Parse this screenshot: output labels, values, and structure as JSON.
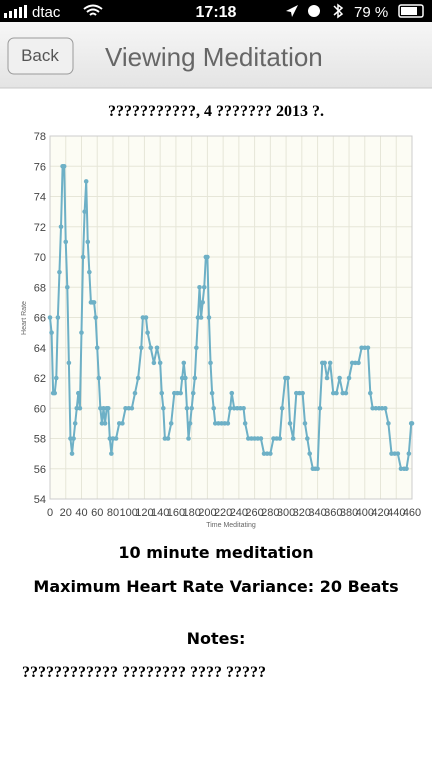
{
  "status_bar": {
    "carrier": "dtac",
    "time": "17:18",
    "battery": "79 %"
  },
  "nav": {
    "back": "Back",
    "title": "Viewing Meditation"
  },
  "chart_data": {
    "type": "line",
    "title": "???????????, 4 ??????? 2013 ?.",
    "x_label": "Time Meditating",
    "y_label": "Heart Rate",
    "color": "#6db0c6",
    "grid": true,
    "x": [
      0,
      2,
      4,
      6,
      8,
      10,
      12,
      14,
      16,
      18,
      20,
      22,
      24,
      26,
      28,
      30,
      32,
      34,
      36,
      38,
      40,
      42,
      44,
      46,
      48,
      50,
      52,
      54,
      56,
      58,
      60,
      62,
      64,
      66,
      68,
      70,
      72,
      74,
      76,
      78,
      80,
      84,
      88,
      92,
      96,
      100,
      104,
      108,
      112,
      116,
      118,
      122,
      124,
      128,
      132,
      136,
      140,
      142,
      144,
      146,
      150,
      154,
      158,
      162,
      166,
      168,
      170,
      172,
      174,
      176,
      178,
      180,
      182,
      184,
      186,
      188,
      190,
      192,
      194,
      196,
      198,
      200,
      202,
      204,
      206,
      208,
      210,
      214,
      218,
      222,
      226,
      229,
      231,
      234,
      238,
      242,
      246,
      248,
      252,
      256,
      260,
      264,
      268,
      272,
      276,
      280,
      284,
      288,
      292,
      295,
      299,
      302,
      305,
      309,
      313,
      317,
      321,
      324,
      327,
      330,
      334,
      337,
      340,
      343,
      346,
      349,
      352,
      356,
      360,
      364,
      368,
      372,
      376,
      380,
      384,
      388,
      392,
      396,
      400,
      404,
      407,
      410,
      414,
      418,
      422,
      426,
      430,
      434,
      438,
      442,
      446,
      450,
      453,
      456,
      459,
      460
    ],
    "values": [
      66,
      65,
      61,
      61,
      62,
      66,
      69,
      72,
      76,
      76,
      71,
      68,
      63,
      58,
      57,
      58,
      59,
      60,
      61,
      60,
      65,
      70,
      73,
      75,
      71,
      69,
      67,
      67,
      67,
      66,
      64,
      62,
      60,
      59,
      60,
      59,
      60,
      60,
      58,
      57,
      58,
      58,
      59,
      59,
      60,
      60,
      60,
      61,
      62,
      64,
      66,
      66,
      65,
      64,
      63,
      64,
      63,
      61,
      60,
      58,
      58,
      59,
      61,
      61,
      61,
      62,
      63,
      62,
      60,
      58,
      59,
      60,
      61,
      62,
      64,
      66,
      68,
      66,
      67,
      68,
      70,
      70,
      66,
      63,
      61,
      60,
      59,
      59,
      59,
      59,
      59,
      60,
      61,
      60,
      60,
      60,
      60,
      59,
      58,
      58,
      58,
      58,
      58,
      57,
      57,
      57,
      58,
      58,
      58,
      60,
      62,
      62,
      59,
      58,
      61,
      61,
      61,
      59,
      58,
      57,
      56,
      56,
      56,
      60,
      63,
      63,
      62,
      63,
      61,
      61,
      62,
      61,
      61,
      62,
      63,
      63,
      63,
      64,
      64,
      64,
      61,
      60,
      60,
      60,
      60,
      60,
      59,
      57,
      57,
      57,
      56,
      56,
      56,
      57,
      59,
      59
    ],
    "xlim": [
      0,
      460
    ],
    "xticks": [
      0,
      20,
      40,
      60,
      80,
      100,
      120,
      140,
      160,
      180,
      200,
      220,
      240,
      260,
      280,
      300,
      320,
      340,
      360,
      380,
      400,
      420,
      440,
      460
    ],
    "ylim": [
      54,
      78
    ],
    "yticks": [
      54,
      56,
      58,
      60,
      62,
      64,
      66,
      68,
      70,
      72,
      74,
      76,
      78
    ]
  },
  "summary": {
    "duration": "10 minute meditation",
    "variance": "Maximum Heart Rate Variance: 20 Beats"
  },
  "notes": {
    "heading": "Notes:",
    "text": "???????????? ???????? ???? ?????"
  }
}
